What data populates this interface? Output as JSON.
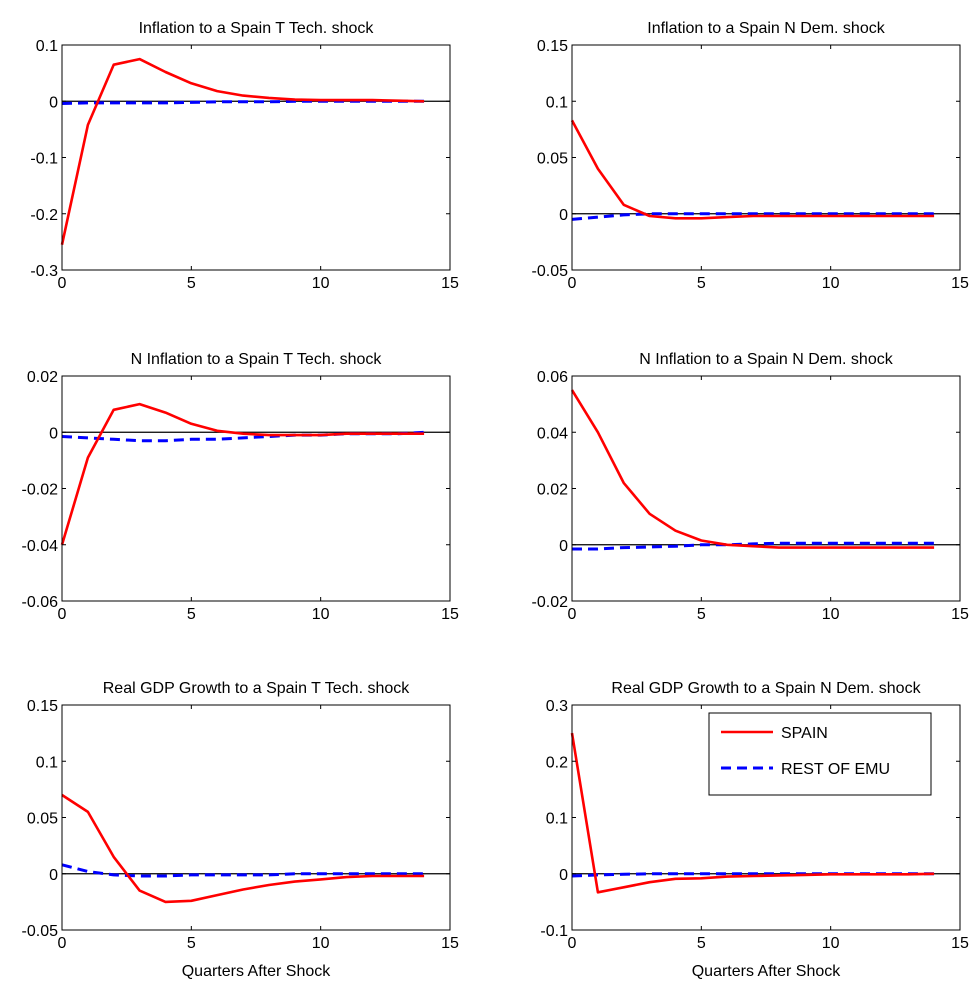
{
  "colors": {
    "spain": "#ff0000",
    "rest_of_emu": "#0000ff",
    "zero_line": "#000000"
  },
  "legend": {
    "entries": [
      "SPAIN",
      "REST OF EMU"
    ],
    "placement": "top-right of bottom-right panel"
  },
  "chart_data": [
    {
      "type": "line",
      "title": "Inflation to a Spain T Tech. shock",
      "xlabel": "",
      "xlim": [
        0,
        15
      ],
      "ylim": [
        -0.3,
        0.1
      ],
      "xticks": [
        0,
        5,
        10,
        15
      ],
      "yticks": [
        -0.3,
        -0.2,
        -0.1,
        0,
        0.1
      ],
      "ytick_labels": [
        "-0.3",
        "-0.2",
        "-0.1",
        "0",
        "0.1"
      ],
      "x": [
        0,
        1,
        2,
        3,
        4,
        5,
        6,
        7,
        8,
        9,
        10,
        11,
        12,
        13,
        14
      ],
      "series": [
        {
          "name": "SPAIN",
          "values": [
            -0.255,
            -0.042,
            0.065,
            0.075,
            0.052,
            0.032,
            0.018,
            0.01,
            0.006,
            0.003,
            0.002,
            0.002,
            0.002,
            0.001,
            0.0
          ]
        },
        {
          "name": "REST OF EMU",
          "values": [
            -0.004,
            -0.003,
            -0.003,
            -0.003,
            -0.003,
            -0.002,
            -0.001,
            -0.001,
            -0.001,
            0.0,
            0.0,
            0.0,
            0.0,
            0.0,
            0.0
          ]
        }
      ]
    },
    {
      "type": "line",
      "title": "Inflation to a Spain N Dem. shock",
      "xlabel": "",
      "xlim": [
        0,
        15
      ],
      "ylim": [
        -0.05,
        0.15
      ],
      "xticks": [
        0,
        5,
        10,
        15
      ],
      "yticks": [
        -0.05,
        0,
        0.05,
        0.1,
        0.15
      ],
      "ytick_labels": [
        "-0.05",
        "0",
        "0.05",
        "0.1",
        "0.15"
      ],
      "x": [
        0,
        1,
        2,
        3,
        4,
        5,
        6,
        7,
        8,
        9,
        10,
        11,
        12,
        13,
        14
      ],
      "series": [
        {
          "name": "SPAIN",
          "values": [
            0.083,
            0.04,
            0.008,
            -0.002,
            -0.004,
            -0.004,
            -0.003,
            -0.002,
            -0.002,
            -0.002,
            -0.002,
            -0.002,
            -0.002,
            -0.002,
            -0.002
          ]
        },
        {
          "name": "REST OF EMU",
          "values": [
            -0.005,
            -0.003,
            -0.001,
            0.0,
            0.0,
            0.0,
            0.0,
            0.0,
            0.0,
            0.0,
            0.0,
            0.0,
            0.0,
            0.0,
            0.0
          ]
        }
      ]
    },
    {
      "type": "line",
      "title": "N Inflation to a Spain T Tech. shock",
      "xlabel": "",
      "xlim": [
        0,
        15
      ],
      "ylim": [
        -0.06,
        0.02
      ],
      "xticks": [
        0,
        5,
        10,
        15
      ],
      "yticks": [
        -0.06,
        -0.04,
        -0.02,
        0,
        0.02
      ],
      "ytick_labels": [
        "-0.06",
        "-0.04",
        "-0.02",
        "0",
        "0.02"
      ],
      "x": [
        0,
        1,
        2,
        3,
        4,
        5,
        6,
        7,
        8,
        9,
        10,
        11,
        12,
        13,
        14
      ],
      "series": [
        {
          "name": "SPAIN",
          "values": [
            -0.04,
            -0.009,
            0.008,
            0.01,
            0.007,
            0.003,
            0.0005,
            -0.0005,
            -0.001,
            -0.001,
            -0.001,
            -0.0005,
            -0.0005,
            -0.0005,
            -0.0005
          ]
        },
        {
          "name": "REST OF EMU",
          "values": [
            -0.0015,
            -0.002,
            -0.0025,
            -0.003,
            -0.003,
            -0.0025,
            -0.0025,
            -0.002,
            -0.0015,
            -0.001,
            -0.001,
            -0.0005,
            -0.0005,
            -0.0005,
            0.0
          ]
        }
      ]
    },
    {
      "type": "line",
      "title": "N Inflation to a Spain N Dem. shock",
      "xlabel": "",
      "xlim": [
        0,
        15
      ],
      "ylim": [
        -0.02,
        0.06
      ],
      "xticks": [
        0,
        5,
        10,
        15
      ],
      "yticks": [
        -0.02,
        0,
        0.02,
        0.04,
        0.06
      ],
      "ytick_labels": [
        "-0.02",
        "0",
        "0.02",
        "0.04",
        "0.06"
      ],
      "x": [
        0,
        1,
        2,
        3,
        4,
        5,
        6,
        7,
        8,
        9,
        10,
        11,
        12,
        13,
        14
      ],
      "series": [
        {
          "name": "SPAIN",
          "values": [
            0.055,
            0.04,
            0.022,
            0.011,
            0.005,
            0.0015,
            0.0,
            -0.0005,
            -0.001,
            -0.001,
            -0.001,
            -0.001,
            -0.001,
            -0.001,
            -0.001
          ]
        },
        {
          "name": "REST OF EMU",
          "values": [
            -0.0015,
            -0.0015,
            -0.001,
            -0.0008,
            -0.0005,
            0.0,
            0.0,
            0.0003,
            0.0005,
            0.0005,
            0.0005,
            0.0005,
            0.0005,
            0.0005,
            0.0005
          ]
        }
      ]
    },
    {
      "type": "line",
      "title": "Real GDP Growth to a Spain T Tech. shock",
      "xlabel": "Quarters After Shock",
      "xlim": [
        0,
        15
      ],
      "ylim": [
        -0.05,
        0.15
      ],
      "xticks": [
        0,
        5,
        10,
        15
      ],
      "yticks": [
        -0.05,
        0,
        0.05,
        0.1,
        0.15
      ],
      "ytick_labels": [
        "-0.05",
        "0",
        "0.05",
        "0.1",
        "0.15"
      ],
      "x": [
        0,
        1,
        2,
        3,
        4,
        5,
        6,
        7,
        8,
        9,
        10,
        11,
        12,
        13,
        14
      ],
      "series": [
        {
          "name": "SPAIN",
          "values": [
            0.07,
            0.055,
            0.015,
            -0.015,
            -0.025,
            -0.024,
            -0.019,
            -0.014,
            -0.01,
            -0.007,
            -0.005,
            -0.003,
            -0.002,
            -0.002,
            -0.002
          ]
        },
        {
          "name": "REST OF EMU",
          "values": [
            0.008,
            0.002,
            -0.001,
            -0.002,
            -0.002,
            -0.001,
            -0.001,
            -0.001,
            -0.001,
            0.0,
            0.0,
            0.0,
            0.0,
            0.0,
            0.0
          ]
        }
      ]
    },
    {
      "type": "line",
      "title": "Real GDP Growth to a Spain N Dem. shock",
      "xlabel": "Quarters After Shock",
      "xlim": [
        0,
        15
      ],
      "ylim": [
        -0.1,
        0.3
      ],
      "xticks": [
        0,
        5,
        10,
        15
      ],
      "yticks": [
        -0.1,
        0,
        0.1,
        0.2,
        0.3
      ],
      "ytick_labels": [
        "-0.1",
        "0",
        "0.1",
        "0.2",
        "0.3"
      ],
      "x": [
        0,
        1,
        2,
        3,
        4,
        5,
        6,
        7,
        8,
        9,
        10,
        11,
        12,
        13,
        14
      ],
      "series": [
        {
          "name": "SPAIN",
          "values": [
            0.25,
            -0.033,
            -0.024,
            -0.015,
            -0.009,
            -0.008,
            -0.005,
            -0.004,
            -0.003,
            -0.002,
            -0.001,
            -0.001,
            -0.001,
            -0.001,
            0.0
          ]
        },
        {
          "name": "REST OF EMU",
          "values": [
            -0.004,
            -0.002,
            -0.001,
            0.0,
            0.0,
            0.0,
            0.0,
            0.0,
            0.0,
            0.0,
            0.0,
            0.0,
            0.0,
            0.0,
            0.0
          ]
        }
      ]
    }
  ]
}
